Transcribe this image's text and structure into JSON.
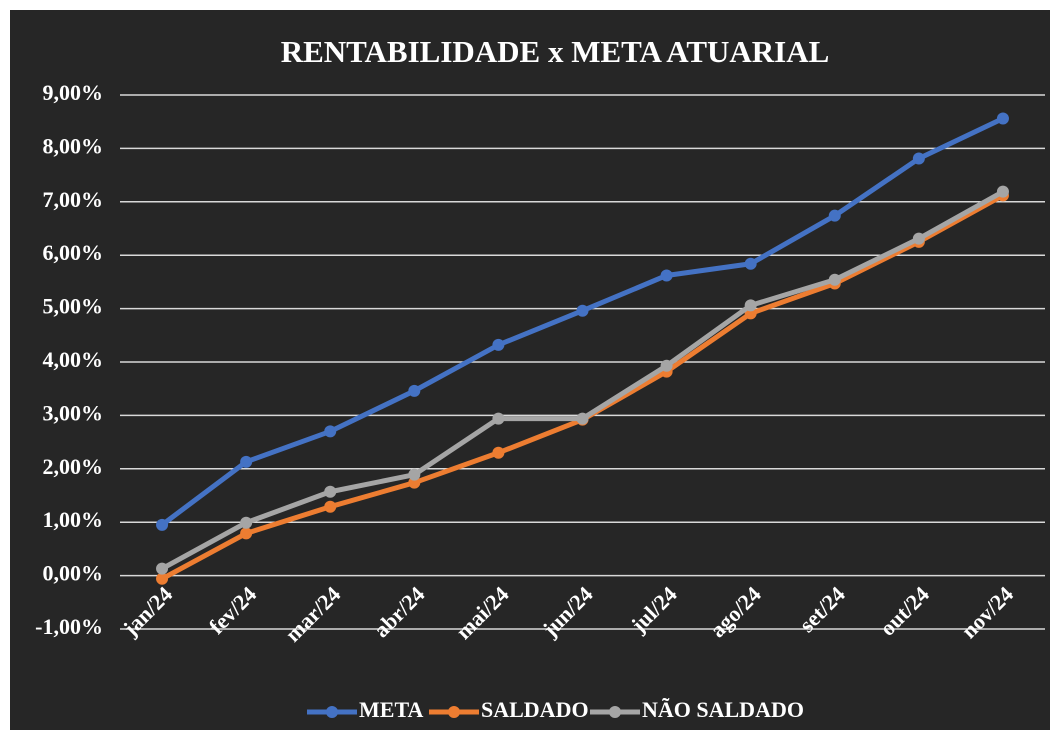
{
  "chart_data": {
    "type": "line",
    "title": "RENTABILIDADE x META ATUARIAL",
    "categories": [
      "jan/24",
      "fev/24",
      "mar/24",
      "abr/24",
      "mai/24",
      "jun/24",
      "jul/24",
      "ago/24",
      "set/24",
      "out/24",
      "nov/24"
    ],
    "series": [
      {
        "name": "META",
        "color": "#4472c4",
        "values": [
          0.95,
          2.13,
          2.7,
          3.46,
          4.32,
          4.96,
          5.62,
          5.84,
          6.74,
          7.81,
          8.56
        ]
      },
      {
        "name": "SALDADO",
        "color": "#ed7d31",
        "values": [
          -0.06,
          0.79,
          1.29,
          1.74,
          2.3,
          2.92,
          3.82,
          4.91,
          5.47,
          6.25,
          7.12
        ]
      },
      {
        "name": "NÃO SALDADO",
        "color": "#a5a5a5",
        "values": [
          0.13,
          0.99,
          1.57,
          1.89,
          2.94,
          2.94,
          3.93,
          5.06,
          5.54,
          6.31,
          7.19
        ]
      }
    ],
    "ylim": [
      -1,
      9
    ],
    "yticks": [
      {
        "value": -1,
        "label": "-1,00%"
      },
      {
        "value": 0,
        "label": "0,00%"
      },
      {
        "value": 1,
        "label": "1,00%"
      },
      {
        "value": 2,
        "label": "2,00%"
      },
      {
        "value": 3,
        "label": "3,00%"
      },
      {
        "value": 4,
        "label": "4,00%"
      },
      {
        "value": 5,
        "label": "5,00%"
      },
      {
        "value": 6,
        "label": "6,00%"
      },
      {
        "value": 7,
        "label": "7,00%"
      },
      {
        "value": 8,
        "label": "8,00%"
      },
      {
        "value": 9,
        "label": "9,00%"
      }
    ],
    "grid": true,
    "legend": "bottom"
  }
}
